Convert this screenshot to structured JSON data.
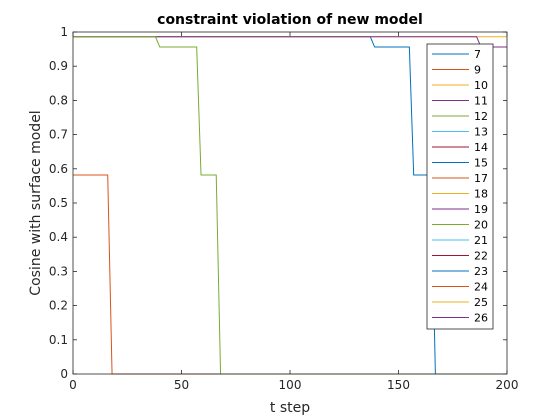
{
  "chart_data": {
    "type": "line",
    "title": "constraint violation of new model",
    "xlabel": "t step",
    "ylabel": "Cosine with surface model",
    "xlim": [
      0,
      200
    ],
    "ylim": [
      0,
      1
    ],
    "x_ticks": [
      0,
      50,
      100,
      150,
      200
    ],
    "y_ticks": [
      0,
      0.1,
      0.2,
      0.3,
      0.4,
      0.5,
      0.6,
      0.7,
      0.8,
      0.9,
      1
    ],
    "x_tick_labels": [
      "0",
      "50",
      "100",
      "150",
      "200"
    ],
    "y_tick_labels": [
      "0",
      "0.1",
      "0.2",
      "0.3",
      "0.4",
      "0.5",
      "0.6",
      "0.7",
      "0.8",
      "0.9",
      "1"
    ],
    "grid": false,
    "legend_position": "top-right",
    "series": [
      {
        "name": "7",
        "color": "#0072BD",
        "x": [
          0,
          137,
          139,
          155,
          157,
          165,
          167,
          200
        ],
        "y": [
          0.986,
          0.986,
          0.956,
          0.956,
          0.582,
          0.582,
          0,
          0
        ]
      },
      {
        "name": "9",
        "color": "#D95319",
        "x": [
          0,
          16,
          18,
          200
        ],
        "y": [
          0.582,
          0.582,
          0,
          0
        ]
      },
      {
        "name": "10",
        "color": "#EDB120",
        "x": [
          0,
          200
        ],
        "y": [
          0.986,
          0.986
        ]
      },
      {
        "name": "11",
        "color": "#7E2F8E",
        "x": [
          0,
          186,
          188,
          200
        ],
        "y": [
          0.986,
          0.986,
          0.956,
          0.956
        ]
      },
      {
        "name": "12",
        "color": "#77AC30",
        "x": [
          0,
          38,
          40,
          57,
          59,
          66,
          68,
          200
        ],
        "y": [
          0.986,
          0.986,
          0.956,
          0.956,
          0.582,
          0.582,
          0,
          0
        ]
      },
      {
        "name": "13",
        "color": "#4DBEEE",
        "x": [],
        "y": []
      },
      {
        "name": "14",
        "color": "#A2142F",
        "x": [],
        "y": []
      },
      {
        "name": "15",
        "color": "#0072BD",
        "x": [],
        "y": []
      },
      {
        "name": "17",
        "color": "#D95319",
        "x": [],
        "y": []
      },
      {
        "name": "18",
        "color": "#EDB120",
        "x": [],
        "y": []
      },
      {
        "name": "19",
        "color": "#7E2F8E",
        "x": [],
        "y": []
      },
      {
        "name": "20",
        "color": "#77AC30",
        "x": [],
        "y": []
      },
      {
        "name": "21",
        "color": "#4DBEEE",
        "x": [],
        "y": []
      },
      {
        "name": "22",
        "color": "#A2142F",
        "x": [],
        "y": []
      },
      {
        "name": "23",
        "color": "#0072BD",
        "x": [],
        "y": []
      },
      {
        "name": "24",
        "color": "#D95319",
        "x": [],
        "y": []
      },
      {
        "name": "25",
        "color": "#EDB120",
        "x": [],
        "y": []
      },
      {
        "name": "26",
        "color": "#7E2F8E",
        "x": [],
        "y": []
      }
    ]
  }
}
